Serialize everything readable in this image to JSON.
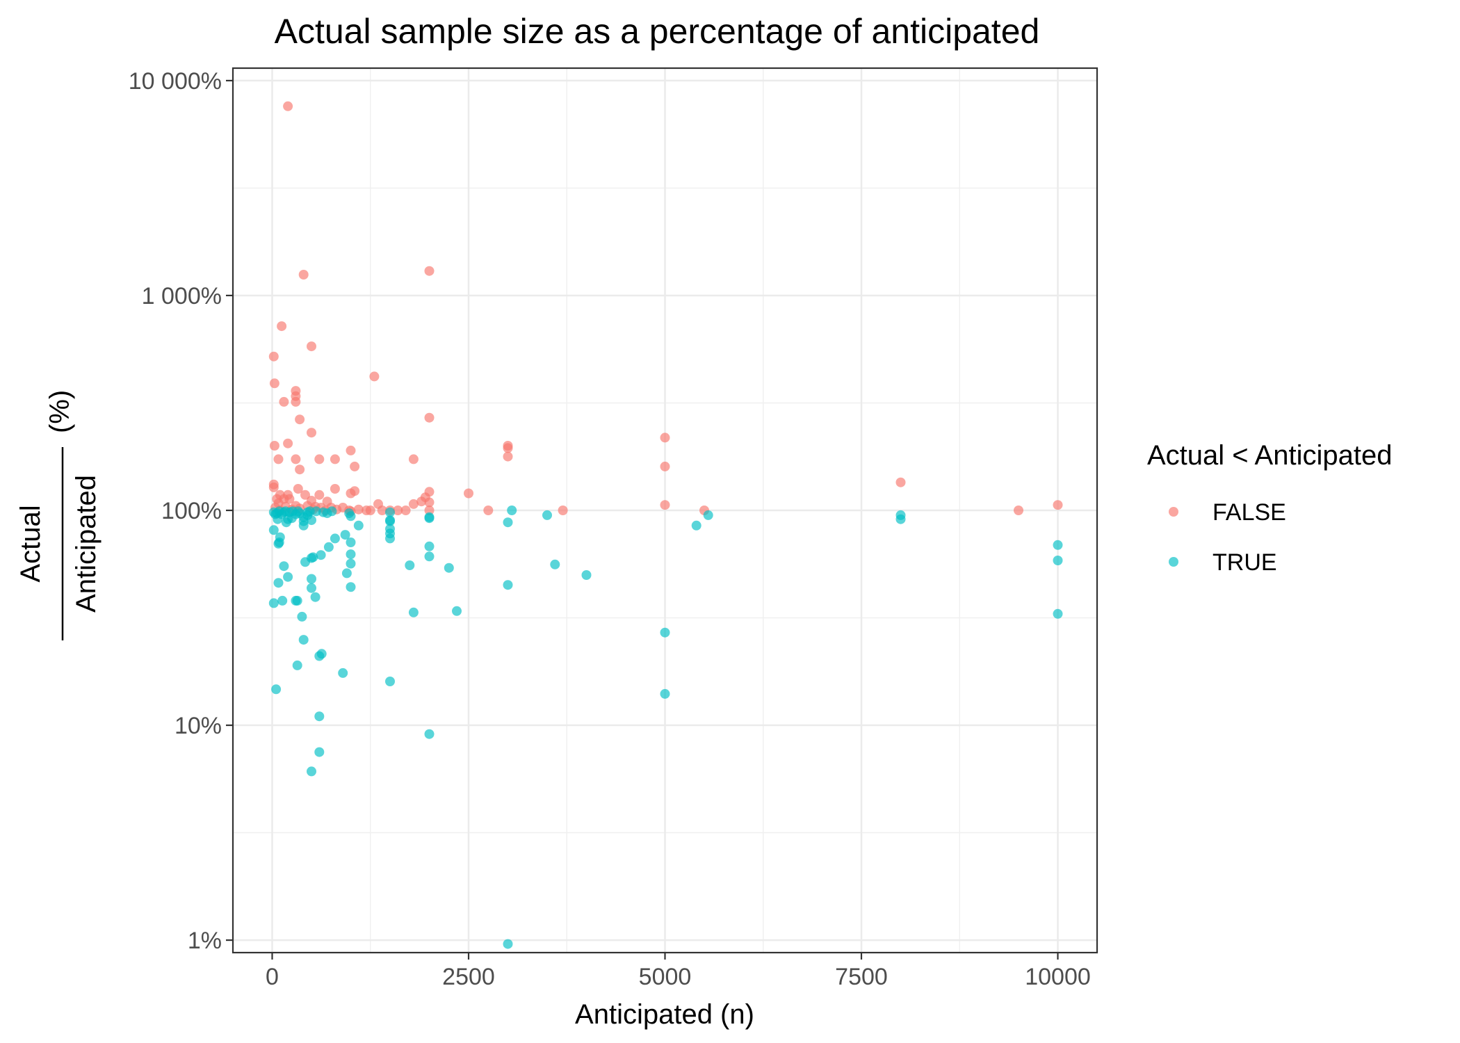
{
  "chart_data": {
    "type": "scatter",
    "title": "Actual sample size as a percentage of anticipated",
    "xlabel": "Anticipated (n)",
    "ylabel": {
      "numerator": "Actual",
      "denominator": "Anticipated",
      "unit": "(%)"
    },
    "xlim": [
      -500,
      10500
    ],
    "ylim": [
      1,
      10000
    ],
    "y_scale": "log10",
    "grid": true,
    "x_ticks": [
      {
        "value": 0,
        "label": "0"
      },
      {
        "value": 2500,
        "label": "2500"
      },
      {
        "value": 5000,
        "label": "5000"
      },
      {
        "value": 7500,
        "label": "7500"
      },
      {
        "value": 10000,
        "label": "10000"
      }
    ],
    "y_ticks": [
      {
        "value": 1,
        "label": "1%"
      },
      {
        "value": 10,
        "label": "10%"
      },
      {
        "value": 100,
        "label": "100%"
      },
      {
        "value": 1000,
        "label": "1 000%"
      },
      {
        "value": 10000,
        "label": "10 000%"
      }
    ],
    "legend": {
      "title": "Actual < Anticipated",
      "position": "right"
    },
    "series": [
      {
        "name": "FALSE",
        "color": "#F8766D",
        "points": [
          [
            200,
            7600
          ],
          [
            400,
            1250
          ],
          [
            2000,
            1300
          ],
          [
            120,
            720
          ],
          [
            500,
            580
          ],
          [
            20,
            520
          ],
          [
            1300,
            420
          ],
          [
            30,
            390
          ],
          [
            300,
            360
          ],
          [
            300,
            340
          ],
          [
            300,
            320
          ],
          [
            150,
            320
          ],
          [
            2000,
            270
          ],
          [
            350,
            265
          ],
          [
            500,
            230
          ],
          [
            3000,
            200
          ],
          [
            3000,
            195
          ],
          [
            200,
            205
          ],
          [
            30,
            200
          ],
          [
            1000,
            190
          ],
          [
            5000,
            218
          ],
          [
            3000,
            178
          ],
          [
            80,
            173
          ],
          [
            300,
            173
          ],
          [
            600,
            173
          ],
          [
            800,
            173
          ],
          [
            1800,
            173
          ],
          [
            5000,
            160
          ],
          [
            1050,
            160
          ],
          [
            350,
            155
          ],
          [
            8000,
            135
          ],
          [
            20,
            132
          ],
          [
            20,
            128
          ],
          [
            330,
            126
          ],
          [
            800,
            126
          ],
          [
            1050,
            123
          ],
          [
            2000,
            122
          ],
          [
            2500,
            120
          ],
          [
            1000,
            120
          ],
          [
            600,
            118
          ],
          [
            420,
            118
          ],
          [
            100,
            118
          ],
          [
            200,
            118
          ],
          [
            1950,
            115
          ],
          [
            60,
            113
          ],
          [
            150,
            113
          ],
          [
            220,
            113
          ],
          [
            500,
            111
          ],
          [
            700,
            110
          ],
          [
            1900,
            110
          ],
          [
            2000,
            109
          ],
          [
            1350,
            107
          ],
          [
            1800,
            107
          ],
          [
            5000,
            106
          ],
          [
            10000,
            106
          ],
          [
            80,
            108
          ],
          [
            300,
            105
          ],
          [
            450,
            105
          ],
          [
            550,
            104
          ],
          [
            620,
            103
          ],
          [
            750,
            103
          ],
          [
            900,
            103
          ],
          [
            1100,
            101
          ],
          [
            1200,
            100
          ],
          [
            1250,
            100
          ],
          [
            1400,
            100
          ],
          [
            1500,
            100
          ],
          [
            1600,
            100
          ],
          [
            1700,
            100
          ],
          [
            2000,
            100
          ],
          [
            2750,
            100
          ],
          [
            3700,
            100
          ],
          [
            5500,
            100
          ],
          [
            9500,
            100
          ],
          [
            1000,
            99
          ],
          [
            100,
            100
          ],
          [
            250,
            101
          ],
          [
            350,
            102
          ],
          [
            520,
            101
          ],
          [
            680,
            100
          ],
          [
            820,
            101
          ],
          [
            980,
            100
          ],
          [
            40,
            103
          ],
          [
            170,
            104
          ]
        ]
      },
      {
        "name": "TRUE",
        "color": "#00BFC4",
        "points": [
          [
            3000,
            0.96
          ],
          [
            500,
            6.1
          ],
          [
            600,
            7.5
          ],
          [
            2000,
            9.1
          ],
          [
            600,
            11
          ],
          [
            50,
            14.7
          ],
          [
            1500,
            16
          ],
          [
            900,
            17.5
          ],
          [
            320,
            19
          ],
          [
            600,
            21
          ],
          [
            630,
            21.5
          ],
          [
            400,
            25
          ],
          [
            5000,
            27
          ],
          [
            5000,
            14
          ],
          [
            10000,
            33
          ],
          [
            1800,
            33.5
          ],
          [
            2350,
            34
          ],
          [
            380,
            32
          ],
          [
            20,
            37
          ],
          [
            130,
            38
          ],
          [
            300,
            38
          ],
          [
            320,
            38
          ],
          [
            550,
            39.5
          ],
          [
            1000,
            44
          ],
          [
            3000,
            45
          ],
          [
            500,
            43.5
          ],
          [
            80,
            46
          ],
          [
            200,
            49
          ],
          [
            500,
            48
          ],
          [
            950,
            51
          ],
          [
            4000,
            50
          ],
          [
            2250,
            54
          ],
          [
            1750,
            55.5
          ],
          [
            3600,
            56
          ],
          [
            150,
            55
          ],
          [
            1000,
            56.5
          ],
          [
            420,
            57.5
          ],
          [
            500,
            60
          ],
          [
            520,
            60.5
          ],
          [
            2000,
            61
          ],
          [
            620,
            62
          ],
          [
            1000,
            62.5
          ],
          [
            10000,
            58.5
          ],
          [
            10000,
            69
          ],
          [
            2000,
            68
          ],
          [
            720,
            67.5
          ],
          [
            1000,
            71
          ],
          [
            80,
            70
          ],
          [
            90,
            71
          ],
          [
            100,
            75
          ],
          [
            800,
            74
          ],
          [
            1500,
            74
          ],
          [
            1500,
            78
          ],
          [
            930,
            77
          ],
          [
            1500,
            82
          ],
          [
            20,
            81
          ],
          [
            1100,
            85
          ],
          [
            5400,
            85
          ],
          [
            400,
            85
          ],
          [
            400,
            89
          ],
          [
            180,
            88
          ],
          [
            1500,
            89
          ],
          [
            1500,
            90
          ],
          [
            500,
            90
          ],
          [
            3000,
            88
          ],
          [
            200,
            91
          ],
          [
            70,
            91
          ],
          [
            250,
            92
          ],
          [
            8000,
            91
          ],
          [
            400,
            93
          ],
          [
            2000,
            92
          ],
          [
            2000,
            93
          ],
          [
            450,
            95
          ],
          [
            5550,
            95
          ],
          [
            8000,
            95
          ],
          [
            3500,
            95
          ],
          [
            1000,
            94
          ],
          [
            120,
            96
          ],
          [
            300,
            96
          ],
          [
            350,
            97
          ],
          [
            700,
            97
          ],
          [
            40,
            96
          ],
          [
            60,
            97
          ],
          [
            150,
            98
          ],
          [
            220,
            98
          ],
          [
            3050,
            100
          ],
          [
            480,
            99
          ],
          [
            260,
            99
          ],
          [
            330,
            99
          ],
          [
            560,
            99
          ],
          [
            760,
            99
          ],
          [
            980,
            97
          ],
          [
            1500,
            98
          ],
          [
            170,
            99
          ],
          [
            90,
            99
          ],
          [
            20,
            98
          ],
          [
            450,
            98
          ],
          [
            650,
            98
          ]
        ]
      }
    ]
  }
}
